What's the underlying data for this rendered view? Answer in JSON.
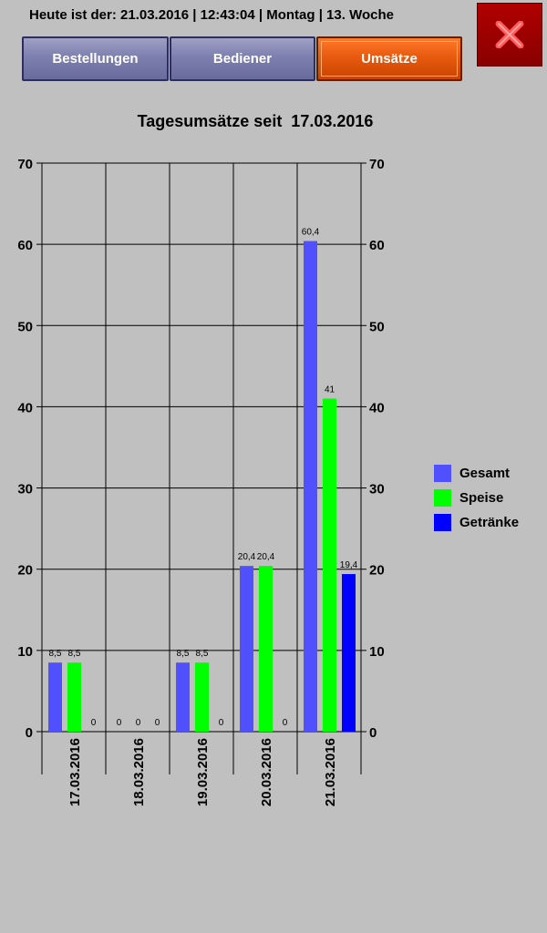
{
  "header": {
    "info": "Heute ist der: 21.03.2016 | 12:43:04 | Montag | 13. Woche"
  },
  "tabs": [
    {
      "label": "Bestellungen",
      "active": false
    },
    {
      "label": "Bediener",
      "active": false
    },
    {
      "label": "Umsätze",
      "active": true
    }
  ],
  "close_button": {
    "icon": "close-x-icon",
    "color": "#9a0000"
  },
  "chart_data": {
    "type": "bar",
    "title": "Tagesumsätze seit  17.03.2016",
    "categories": [
      "17.03.2016",
      "18.03.2016",
      "19.03.2016",
      "20.03.2016",
      "21.03.2016"
    ],
    "series": [
      {
        "name": "Gesamt",
        "color": "#5050ff",
        "values": [
          8.5,
          0,
          8.5,
          20.4,
          60.4
        ],
        "labels": [
          "8,5",
          "0",
          "8,5",
          "20,4",
          "60,4"
        ]
      },
      {
        "name": "Speise",
        "color": "#00ff00",
        "values": [
          8.5,
          0,
          8.5,
          20.4,
          41
        ],
        "labels": [
          "8,5",
          "0",
          "8,5",
          "20,4",
          "41"
        ]
      },
      {
        "name": "Getränke",
        "color": "#0000ff",
        "values": [
          0,
          0,
          0,
          0,
          19.4
        ],
        "labels": [
          "0",
          "0",
          "0",
          "0",
          "19,4"
        ]
      }
    ],
    "ylim": [
      0,
      70
    ],
    "yticks": [
      0,
      10,
      20,
      30,
      40,
      50,
      60,
      70
    ],
    "grid": true,
    "legend": "right",
    "xlabel": "",
    "ylabel": ""
  }
}
